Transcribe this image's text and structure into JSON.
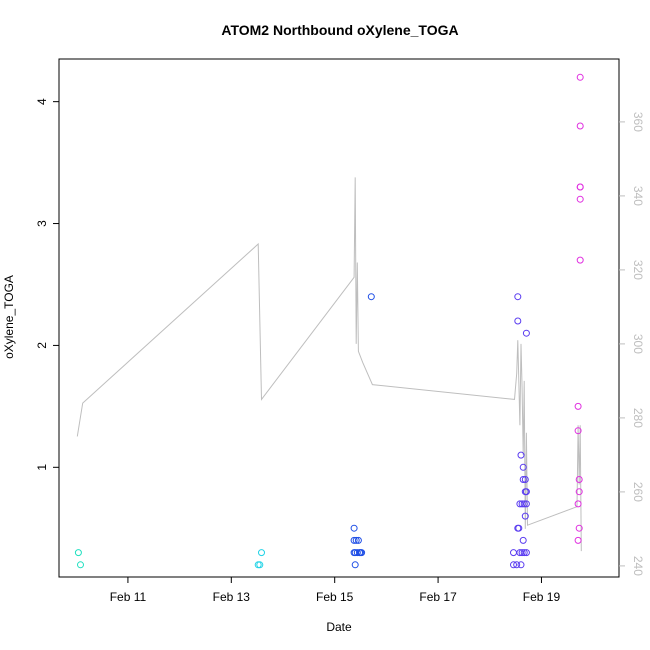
{
  "chart_data": {
    "type": "scatter",
    "title": "ATOM2 Northbound oXylene_TOGA",
    "xlabel": "Date",
    "ylabel": "oXylene_TOGA",
    "xlim": [
      "2017-02-09 16:00",
      "2017-02-20 12:00"
    ],
    "ylim": [
      0.1,
      4.35
    ],
    "y2lim": [
      237,
      377
    ],
    "x_ticks": [
      {
        "value": "2017-02-11",
        "label": "Feb 11"
      },
      {
        "value": "2017-02-13",
        "label": "Feb 13"
      },
      {
        "value": "2017-02-15",
        "label": "Feb 15"
      },
      {
        "value": "2017-02-17",
        "label": "Feb 17"
      },
      {
        "value": "2017-02-19",
        "label": "Feb 19"
      }
    ],
    "y_ticks": [
      "1",
      "2",
      "3",
      "4"
    ],
    "y2_ticks": [
      "240",
      "260",
      "280",
      "300",
      "320",
      "340",
      "360"
    ],
    "grid": false,
    "colors": {
      "line": "#bebebe",
      "points_early": "#22d3e6",
      "points_mid": "#1f4fe6",
      "points_late": "#7a2ff0",
      "points_end": "#e030e0"
    },
    "points": [
      {
        "x": "2017-02-10 01:00",
        "y": 0.3,
        "color": "#1fe0c0"
      },
      {
        "x": "2017-02-10 02:00",
        "y": 0.2,
        "color": "#1fe0c0"
      },
      {
        "x": "2017-02-13 12:30",
        "y": 0.2,
        "color": "#22d3e6"
      },
      {
        "x": "2017-02-13 13:15",
        "y": 0.2,
        "color": "#22d3e6"
      },
      {
        "x": "2017-02-13 14:00",
        "y": 0.3,
        "color": "#22d3e6"
      },
      {
        "x": "2017-02-15 09:00",
        "y": 0.5,
        "color": "#1f4fe6"
      },
      {
        "x": "2017-02-15 09:00",
        "y": 0.4,
        "color": "#1f4fe6"
      },
      {
        "x": "2017-02-15 09:00",
        "y": 0.3,
        "color": "#1f4fe6"
      },
      {
        "x": "2017-02-15 09:30",
        "y": 0.2,
        "color": "#1f4fe6"
      },
      {
        "x": "2017-02-15 09:30",
        "y": 0.3,
        "color": "#1f4fe6"
      },
      {
        "x": "2017-02-15 10:00",
        "y": 0.4,
        "color": "#1f4fe6"
      },
      {
        "x": "2017-02-15 10:30",
        "y": 0.3,
        "color": "#1f4fe6"
      },
      {
        "x": "2017-02-15 11:00",
        "y": 0.4,
        "color": "#1f4fe6"
      },
      {
        "x": "2017-02-15 11:30",
        "y": 0.3,
        "color": "#1f4fe6"
      },
      {
        "x": "2017-02-15 12:00",
        "y": 0.3,
        "color": "#1f4fe6"
      },
      {
        "x": "2017-02-15 12:30",
        "y": 0.3,
        "color": "#1f4fe6"
      },
      {
        "x": "2017-02-15 17:00",
        "y": 2.4,
        "color": "#1f4fe6"
      },
      {
        "x": "2017-02-18 11:00",
        "y": 0.3,
        "color": "#5a3cf0"
      },
      {
        "x": "2017-02-18 11:00",
        "y": 0.2,
        "color": "#5a3cf0"
      },
      {
        "x": "2017-02-18 12:30",
        "y": 0.2,
        "color": "#5a3cf0"
      },
      {
        "x": "2017-02-18 13:00",
        "y": 2.4,
        "color": "#5a3cf0"
      },
      {
        "x": "2017-02-18 13:00",
        "y": 2.2,
        "color": "#5a3cf0"
      },
      {
        "x": "2017-02-18 13:00",
        "y": 0.5,
        "color": "#5a3cf0"
      },
      {
        "x": "2017-02-18 13:30",
        "y": 0.5,
        "color": "#5a3cf0"
      },
      {
        "x": "2017-02-18 14:00",
        "y": 0.3,
        "color": "#5a3cf0"
      },
      {
        "x": "2017-02-18 14:00",
        "y": 0.7,
        "color": "#5a3cf0"
      },
      {
        "x": "2017-02-18 14:30",
        "y": 1.1,
        "color": "#5a3cf0"
      },
      {
        "x": "2017-02-18 14:30",
        "y": 0.2,
        "color": "#5a3cf0"
      },
      {
        "x": "2017-02-18 15:00",
        "y": 0.3,
        "color": "#5a3cf0"
      },
      {
        "x": "2017-02-18 15:00",
        "y": 0.7,
        "color": "#5a3cf0"
      },
      {
        "x": "2017-02-18 15:30",
        "y": 1.0,
        "color": "#5a3cf0"
      },
      {
        "x": "2017-02-18 15:30",
        "y": 0.4,
        "color": "#5a3cf0"
      },
      {
        "x": "2017-02-18 15:30",
        "y": 0.9,
        "color": "#5a3cf0"
      },
      {
        "x": "2017-02-18 16:00",
        "y": 0.7,
        "color": "#5a3cf0"
      },
      {
        "x": "2017-02-18 16:00",
        "y": 0.3,
        "color": "#5a3cf0"
      },
      {
        "x": "2017-02-18 16:30",
        "y": 0.8,
        "color": "#5a3cf0"
      },
      {
        "x": "2017-02-18 16:30",
        "y": 0.9,
        "color": "#5a3cf0"
      },
      {
        "x": "2017-02-18 16:30",
        "y": 0.6,
        "color": "#5a3cf0"
      },
      {
        "x": "2017-02-18 17:00",
        "y": 0.7,
        "color": "#5a3cf0"
      },
      {
        "x": "2017-02-18 17:00",
        "y": 0.3,
        "color": "#5a3cf0"
      },
      {
        "x": "2017-02-18 17:00",
        "y": 2.1,
        "color": "#5a3cf0"
      },
      {
        "x": "2017-02-18 17:00",
        "y": 0.8,
        "color": "#5a3cf0"
      },
      {
        "x": "2017-02-19 17:00",
        "y": 0.4,
        "color": "#e030e0"
      },
      {
        "x": "2017-02-19 17:00",
        "y": 0.7,
        "color": "#e030e0"
      },
      {
        "x": "2017-02-19 17:00",
        "y": 1.5,
        "color": "#e030e0"
      },
      {
        "x": "2017-02-19 17:00",
        "y": 1.3,
        "color": "#e030e0"
      },
      {
        "x": "2017-02-19 17:30",
        "y": 0.9,
        "color": "#e030e0"
      },
      {
        "x": "2017-02-19 17:30",
        "y": 0.8,
        "color": "#e030e0"
      },
      {
        "x": "2017-02-19 17:30",
        "y": 0.5,
        "color": "#e030e0"
      },
      {
        "x": "2017-02-19 18:00",
        "y": 4.2,
        "color": "#e030e0"
      },
      {
        "x": "2017-02-19 18:00",
        "y": 3.8,
        "color": "#e030e0"
      },
      {
        "x": "2017-02-19 18:00",
        "y": 3.3,
        "color": "#e030e0"
      },
      {
        "x": "2017-02-19 18:00",
        "y": 3.3,
        "color": "#e030e0"
      },
      {
        "x": "2017-02-19 18:00",
        "y": 3.2,
        "color": "#e030e0"
      },
      {
        "x": "2017-02-19 18:00",
        "y": 2.7,
        "color": "#e030e0"
      }
    ],
    "line_series": {
      "axis": "right",
      "points": [
        {
          "x": "2017-02-10 00:30",
          "y": 275
        },
        {
          "x": "2017-02-10 03:00",
          "y": 284
        },
        {
          "x": "2017-02-13 12:30",
          "y": 327
        },
        {
          "x": "2017-02-13 14:00",
          "y": 285
        },
        {
          "x": "2017-02-15 09:00",
          "y": 318
        },
        {
          "x": "2017-02-15 09:30",
          "y": 345
        },
        {
          "x": "2017-02-15 10:00",
          "y": 300
        },
        {
          "x": "2017-02-15 10:30",
          "y": 322
        },
        {
          "x": "2017-02-15 11:00",
          "y": 298
        },
        {
          "x": "2017-02-15 13:00",
          "y": 295
        },
        {
          "x": "2017-02-15 17:30",
          "y": 289
        },
        {
          "x": "2017-02-18 11:30",
          "y": 285
        },
        {
          "x": "2017-02-18 12:30",
          "y": 292
        },
        {
          "x": "2017-02-18 13:00",
          "y": 301
        },
        {
          "x": "2017-02-18 14:00",
          "y": 278
        },
        {
          "x": "2017-02-18 14:30",
          "y": 300
        },
        {
          "x": "2017-02-18 15:00",
          "y": 288
        },
        {
          "x": "2017-02-18 15:30",
          "y": 270
        },
        {
          "x": "2017-02-18 16:00",
          "y": 290
        },
        {
          "x": "2017-02-18 16:30",
          "y": 250
        },
        {
          "x": "2017-02-18 17:00",
          "y": 276
        },
        {
          "x": "2017-02-18 17:30",
          "y": 251
        },
        {
          "x": "2017-02-19 16:30",
          "y": 256
        },
        {
          "x": "2017-02-19 17:00",
          "y": 278
        },
        {
          "x": "2017-02-19 17:30",
          "y": 262
        },
        {
          "x": "2017-02-19 18:00",
          "y": 278
        },
        {
          "x": "2017-02-19 18:30",
          "y": 244
        }
      ]
    }
  }
}
